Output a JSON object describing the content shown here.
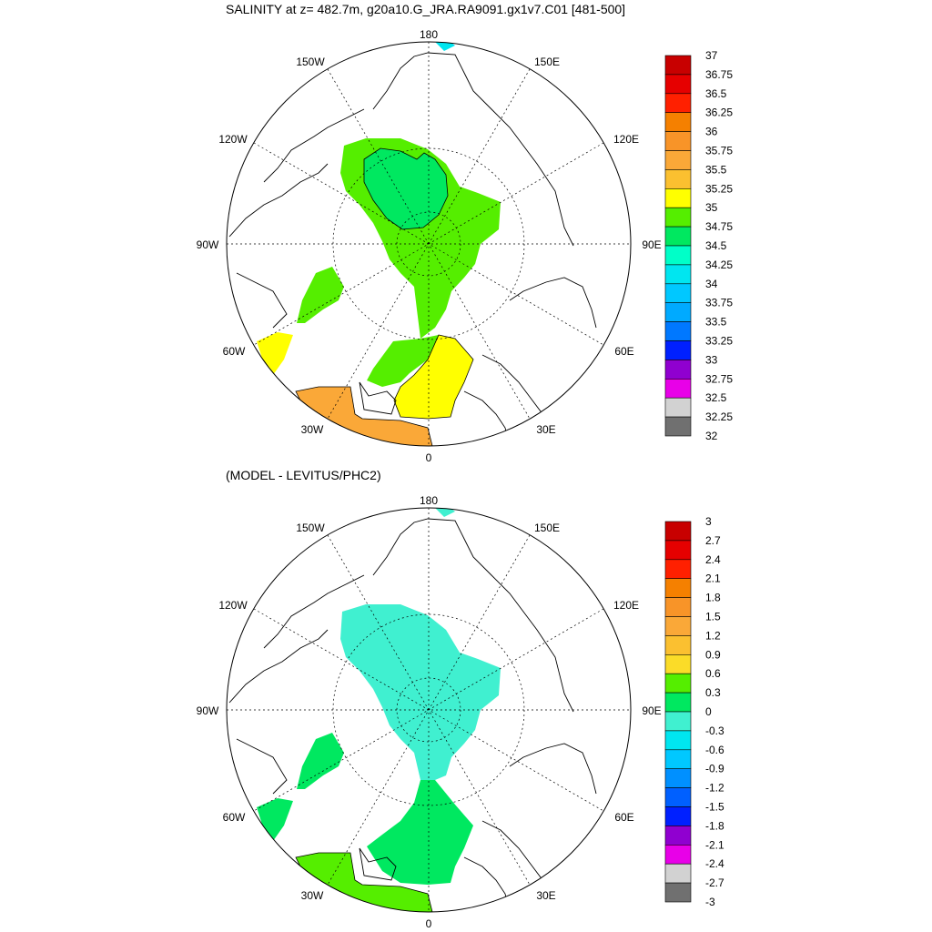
{
  "panels": [
    {
      "title": "SALINITY at z= 482.7m, g20a10.G_JRA.RA9091.gx1v7.C01 [481-500]",
      "lon_labels": [
        "180",
        "150E",
        "120E",
        "90E",
        "60E",
        "30E",
        "0",
        "30W",
        "60W",
        "90W",
        "120W",
        "150W"
      ],
      "colorbar": {
        "levels": [
          "37",
          "36.75",
          "36.5",
          "36.25",
          "36",
          "35.75",
          "35.5",
          "35.25",
          "35",
          "34.75",
          "34.5",
          "34.25",
          "34",
          "33.75",
          "33.5",
          "33.25",
          "33",
          "32.75",
          "32.5",
          "32.25",
          "32"
        ],
        "colors": [
          "#c80000",
          "#e60000",
          "#ff2000",
          "#f58000",
          "#f89428",
          "#faa838",
          "#fbc030",
          "#ffff00",
          "#55ee00",
          "#00e860",
          "#00ffc8",
          "#00e6f0",
          "#00c8ff",
          "#00aaff",
          "#0078ff",
          "#0020ff",
          "#9000d0",
          "#e800e8",
          "#d2d2d2",
          "#707070"
        ]
      }
    },
    {
      "title": "(MODEL - LEVITUS/PHC2)",
      "lon_labels": [
        "180",
        "150E",
        "120E",
        "90E",
        "60E",
        "30E",
        "0",
        "30W",
        "60W",
        "90W",
        "120W",
        "150W"
      ],
      "colorbar": {
        "levels": [
          "3",
          "2.7",
          "2.4",
          "2.1",
          "1.8",
          "1.5",
          "1.2",
          "0.9",
          "0.6",
          "0.3",
          "0",
          "-0.3",
          "-0.6",
          "-0.9",
          "-1.2",
          "-1.5",
          "-1.8",
          "-2.1",
          "-2.4",
          "-2.7",
          "-3"
        ],
        "colors": [
          "#c80000",
          "#e60000",
          "#ff2000",
          "#f58000",
          "#f89428",
          "#faa838",
          "#fbc030",
          "#fbdc28",
          "#55ee00",
          "#00e860",
          "#40f0d0",
          "#00e6f0",
          "#00c8ff",
          "#0090ff",
          "#0060ff",
          "#0020ff",
          "#9000d0",
          "#e800e8",
          "#d2d2d2",
          "#707070"
        ]
      }
    }
  ]
}
